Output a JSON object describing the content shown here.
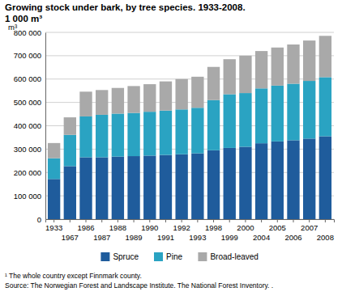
{
  "chart_data": {
    "type": "bar",
    "stacked": true,
    "title": "Growing stock under bark, by tree species. 1933-2008.",
    "subtitle": "1 000 m³",
    "y_label": "m³",
    "notes": [
      "¹ The whole country except Finnmark county.",
      "Source: The Norwegian Forest and Landscape Institute. The National Forest Inventory. ."
    ],
    "categories": [
      "1933",
      "1967",
      "1986",
      "1987",
      "1988",
      "1989",
      "1990",
      "1991",
      "1992",
      "1993",
      "1998",
      "1999",
      "2000",
      "2004",
      "2005",
      "2006",
      "2007",
      "2008"
    ],
    "series": [
      {
        "name": "Spruce",
        "color": "#1f5c9c",
        "values": [
          172000,
          227000,
          265000,
          265000,
          268000,
          270000,
          272000,
          275000,
          278000,
          282000,
          295000,
          305000,
          310000,
          325000,
          333000,
          338000,
          345000,
          355000
        ]
      },
      {
        "name": "Pine",
        "color": "#2aa3c2",
        "values": [
          89000,
          134000,
          175000,
          182000,
          184000,
          185000,
          188000,
          190000,
          192000,
          195000,
          215000,
          230000,
          230000,
          235000,
          239000,
          242000,
          247000,
          253000
        ]
      },
      {
        "name": "Broad-leaved",
        "color": "#a9a9a9",
        "values": [
          65000,
          75000,
          106000,
          106000,
          110000,
          115000,
          118000,
          125000,
          130000,
          133000,
          142000,
          150000,
          160000,
          160000,
          163000,
          168000,
          173000,
          177000
        ]
      }
    ],
    "ylim": [
      0,
      800000
    ],
    "yticks": [
      0,
      {
        "value": 100000,
        "label": "100 000"
      },
      {
        "value": 200000,
        "label": "200 000"
      },
      {
        "value": 300000,
        "label": "300 000"
      },
      {
        "value": 400000,
        "label": "400 000"
      },
      {
        "value": 500000,
        "label": "500 000"
      },
      {
        "value": 600000,
        "label": "600 000"
      },
      {
        "value": 700000,
        "label": "700 000"
      },
      {
        "value": 800000,
        "label": "800 000"
      }
    ],
    "grid": true,
    "legend": "bottom"
  }
}
